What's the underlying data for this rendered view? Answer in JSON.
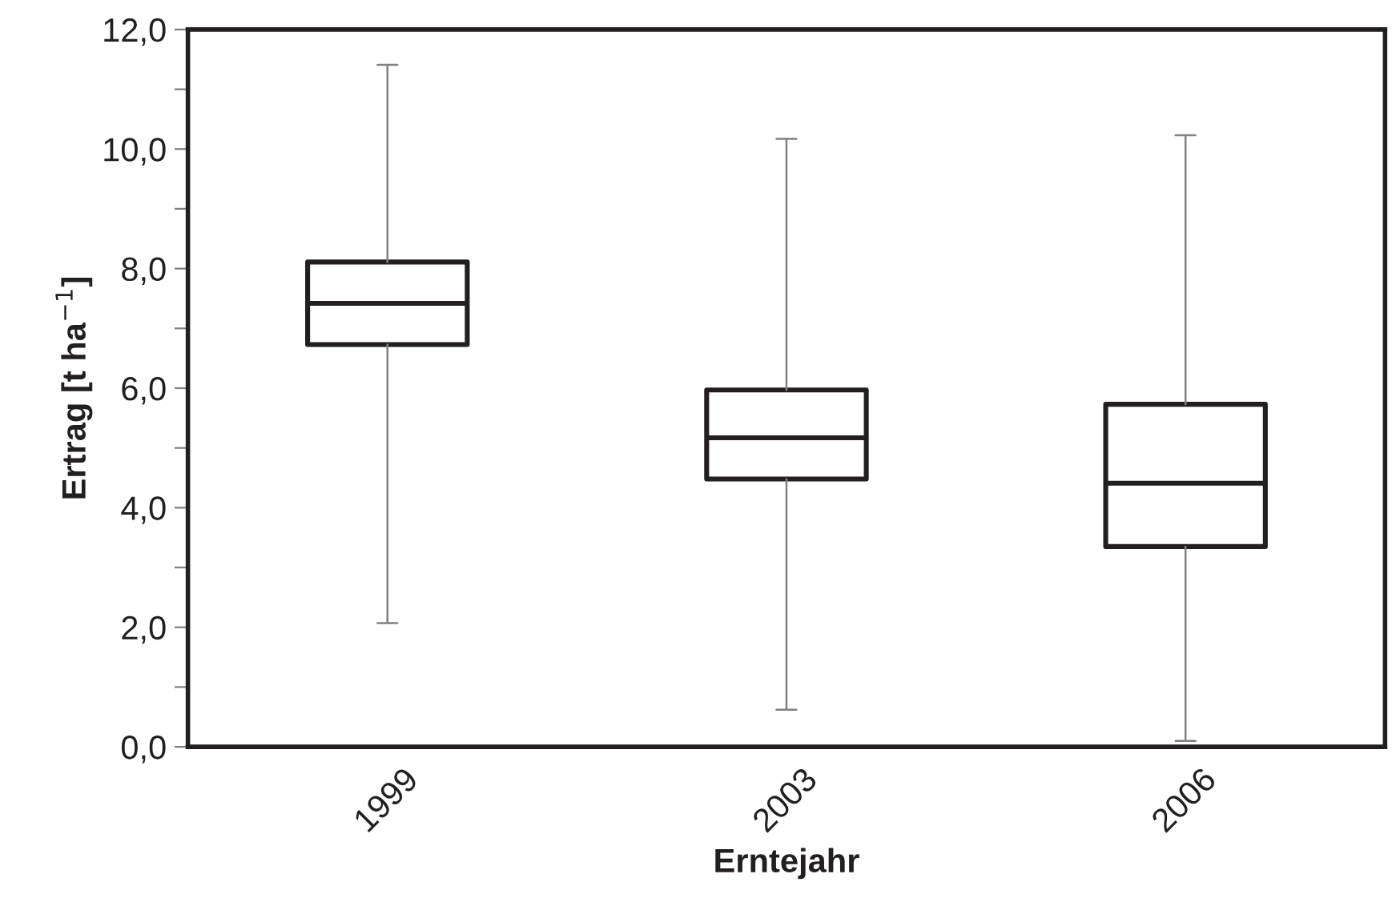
{
  "chart_data": {
    "type": "box",
    "xlabel": "Erntejahr",
    "ylabel": "Ertrag [t ha$^{−1}$]",
    "categories": [
      "1999",
      "2003",
      "2006"
    ],
    "boxes": [
      {
        "low": 2.07,
        "q1": 6.73,
        "median": 7.42,
        "q3": 8.11,
        "high": 11.41
      },
      {
        "low": 0.62,
        "q1": 4.48,
        "median": 5.17,
        "q3": 5.97,
        "high": 10.17
      },
      {
        "low": 0.1,
        "q1": 3.35,
        "median": 4.41,
        "q3": 5.73,
        "high": 10.23
      }
    ],
    "color": "#231f20",
    "ylim": [
      0,
      12
    ],
    "yticks": [
      {
        "value": 0,
        "label": "0,0"
      },
      {
        "value": 1,
        "label": null
      },
      {
        "value": 2,
        "label": "2,0"
      },
      {
        "value": 3,
        "label": null
      },
      {
        "value": 4,
        "label": "4,0"
      },
      {
        "value": 5,
        "label": null
      },
      {
        "value": 6,
        "label": "6,0"
      },
      {
        "value": 7,
        "label": null
      },
      {
        "value": 8,
        "label": "8,0"
      },
      {
        "value": 9,
        "label": null
      },
      {
        "value": 10,
        "label": "10,0"
      },
      {
        "value": 11,
        "label": null
      },
      {
        "value": 12,
        "label": "12,0"
      }
    ],
    "grid": false,
    "legend": false
  }
}
